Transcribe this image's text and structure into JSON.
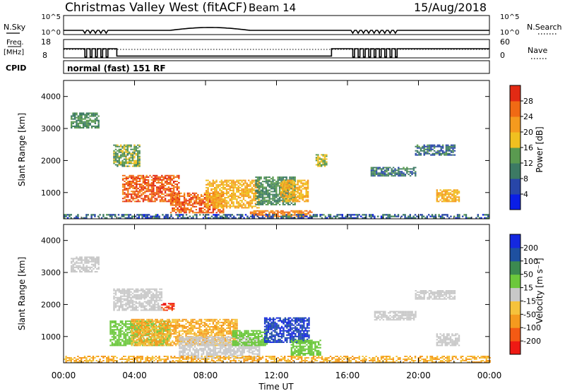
{
  "header": {
    "title": "Christmas Valley West (fitACF)",
    "beam": "Beam 14",
    "date": "15/Aug/2018"
  },
  "summary": {
    "nsky_label": "N.Sky",
    "nsky_ticks": [
      "10^5",
      "10^0"
    ],
    "nsearch_label": "N.Search",
    "nsearch_ticks": [
      "10^5",
      "10^0"
    ],
    "freq_label": "Freq.",
    "freq_unit": "[MHz]",
    "freq_ticks": [
      "18",
      "8"
    ],
    "nave_label": "Nave",
    "nave_ticks": [
      "60",
      "0"
    ],
    "cpid_label": "CPID",
    "cpid_text": "normal (fast) 151 RF"
  },
  "axes": {
    "x_ticks": [
      "00:00",
      "04:00",
      "08:00",
      "12:00",
      "16:00",
      "20:00",
      "00:00"
    ],
    "x_label": "Time UT",
    "y_ticks": [
      "1000",
      "2000",
      "3000",
      "4000"
    ],
    "y_label": "Slant Range [km]"
  },
  "colorbars": {
    "power": {
      "label": "Power [dB]",
      "ticks": [
        "4",
        "8",
        "12",
        "16",
        "20",
        "24",
        "28"
      ],
      "colors": [
        "#0a1ee6",
        "#2846a8",
        "#3c7a64",
        "#5a9a50",
        "#f0c020",
        "#f59a1e",
        "#f06a14",
        "#e22a14"
      ]
    },
    "velocity": {
      "label": "Velocity [m s⁻¹]",
      "ticks": [
        "-200",
        "-100",
        "-50",
        "-15",
        "15",
        "50",
        "100",
        "200"
      ],
      "colors": [
        "#ee1a14",
        "#f45a14",
        "#f59a1e",
        "#f5c23c",
        "#c8c8c8",
        "#6cc83c",
        "#3c8a50",
        "#1e50a0",
        "#1428e0"
      ]
    }
  },
  "chart_data": [
    {
      "type": "heatmap",
      "title": "Power",
      "x_range_hours": [
        0,
        24
      ],
      "ylim": [
        180,
        4500
      ],
      "colorbar_range_db": [
        0,
        32
      ],
      "patches": [
        {
          "t0": 0.4,
          "t1": 2.0,
          "r0": 3000,
          "r1": 3500,
          "value": 12
        },
        {
          "t0": 2.8,
          "t1": 4.3,
          "r0": 1800,
          "r1": 2500,
          "value": 14
        },
        {
          "t0": 3.3,
          "t1": 6.5,
          "r0": 700,
          "r1": 1550,
          "value": 27
        },
        {
          "t0": 6.0,
          "t1": 9.0,
          "r0": 350,
          "r1": 1000,
          "value": 26
        },
        {
          "t0": 8.0,
          "t1": 11.0,
          "r0": 500,
          "r1": 1400,
          "value": 20
        },
        {
          "t0": 10.8,
          "t1": 13.0,
          "r0": 600,
          "r1": 1500,
          "value": 12
        },
        {
          "t0": 10.5,
          "t1": 14.0,
          "r0": 230,
          "r1": 450,
          "value": 24
        },
        {
          "t0": 12.2,
          "t1": 13.8,
          "r0": 700,
          "r1": 1400,
          "value": 20
        },
        {
          "t0": 14.2,
          "t1": 14.8,
          "r0": 1800,
          "r1": 2200,
          "value": 16
        },
        {
          "t0": 17.3,
          "t1": 19.8,
          "r0": 1500,
          "r1": 1800,
          "value": 10
        },
        {
          "t0": 19.8,
          "t1": 22.0,
          "r0": 2150,
          "r1": 2500,
          "value": 9
        },
        {
          "t0": 21.0,
          "t1": 22.3,
          "r0": 700,
          "r1": 1100,
          "value": 20
        },
        {
          "t0": 0.0,
          "t1": 24.0,
          "r0": 180,
          "r1": 330,
          "value": 8
        }
      ]
    },
    {
      "type": "heatmap",
      "title": "Velocity",
      "x_range_hours": [
        0,
        24
      ],
      "ylim": [
        180,
        4500
      ],
      "colorbar_range_ms": [
        -250,
        250
      ],
      "patches": [
        {
          "t0": 0.4,
          "t1": 2.0,
          "r0": 3000,
          "r1": 3500,
          "value": 0
        },
        {
          "t0": 2.8,
          "t1": 5.5,
          "r0": 1800,
          "r1": 2500,
          "value": 0
        },
        {
          "t0": 2.6,
          "t1": 6.0,
          "r0": 700,
          "r1": 1500,
          "value": 30
        },
        {
          "t0": 3.8,
          "t1": 9.8,
          "r0": 700,
          "r1": 1550,
          "value": -50
        },
        {
          "t0": 5.5,
          "t1": 6.2,
          "r0": 1800,
          "r1": 2050,
          "value": -200
        },
        {
          "t0": 6.5,
          "t1": 11.0,
          "r0": 300,
          "r1": 1000,
          "value": 0
        },
        {
          "t0": 9.5,
          "t1": 11.5,
          "r0": 700,
          "r1": 1200,
          "value": 30
        },
        {
          "t0": 11.3,
          "t1": 13.8,
          "r0": 800,
          "r1": 1600,
          "value": 200
        },
        {
          "t0": 12.8,
          "t1": 14.5,
          "r0": 400,
          "r1": 900,
          "value": 30
        },
        {
          "t0": 0.0,
          "t1": 24.0,
          "r0": 180,
          "r1": 400,
          "value": -50
        },
        {
          "t0": 17.5,
          "t1": 19.8,
          "r0": 1500,
          "r1": 1800,
          "value": 0
        },
        {
          "t0": 19.8,
          "t1": 22.0,
          "r0": 2150,
          "r1": 2450,
          "value": 0
        },
        {
          "t0": 21.0,
          "t1": 22.3,
          "r0": 700,
          "r1": 1100,
          "value": 0
        }
      ]
    }
  ]
}
